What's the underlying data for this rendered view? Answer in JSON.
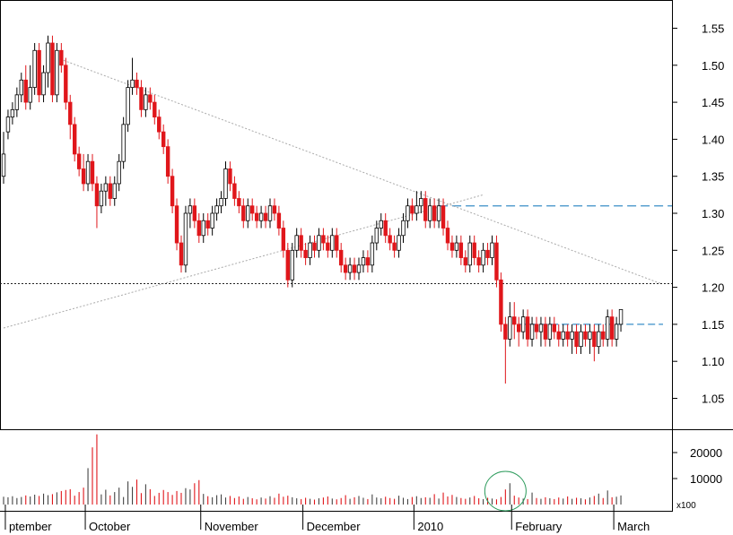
{
  "chart_data": {
    "type": "candlestick",
    "price_axis": {
      "ticks": [
        "1.55",
        "1.50",
        "1.45",
        "1.40",
        "1.35",
        "1.30",
        "1.25",
        "1.20",
        "1.15",
        "1.10",
        "1.05"
      ],
      "range": [
        1.02,
        1.59
      ]
    },
    "volume_axis": {
      "ticks": [
        "20000",
        "10000"
      ],
      "unit_label": "x100",
      "range": [
        0,
        35000
      ]
    },
    "month_labels": [
      {
        "text": "ptember",
        "day": 1
      },
      {
        "text": "October",
        "day": 19
      },
      {
        "text": "November",
        "day": 45
      },
      {
        "text": "December",
        "day": 68
      },
      {
        "text": "2010",
        "day": 93
      },
      {
        "text": "February",
        "day": 115
      },
      {
        "text": "March",
        "day": 138
      }
    ],
    "reference_levels": {
      "support": 1.205,
      "resistance": 1.31,
      "consolidation": 1.15
    },
    "trend_lines": {
      "downtrend": {
        "from": {
          "day": 12,
          "price": 1.51
        },
        "to": {
          "day": 148,
          "price": 1.205
        }
      },
      "uptrend": {
        "from": {
          "day": 0,
          "price": 1.145
        },
        "to": {
          "day": 108,
          "price": 1.325
        }
      }
    },
    "highlight": {
      "shape": "circle",
      "day": 113,
      "note": "volume spike"
    },
    "candles": [
      [
        1.35,
        1.38,
        1.34,
        1.41
      ],
      [
        1.41,
        1.43,
        1.4,
        1.44
      ],
      [
        1.43,
        1.44,
        1.42,
        1.45
      ],
      [
        1.44,
        1.46,
        1.43,
        1.47
      ],
      [
        1.46,
        1.48,
        1.45,
        1.49
      ],
      [
        1.48,
        1.45,
        1.44,
        1.5
      ],
      [
        1.45,
        1.47,
        1.44,
        1.5
      ],
      [
        1.47,
        1.52,
        1.46,
        1.53
      ],
      [
        1.52,
        1.46,
        1.45,
        1.53
      ],
      [
        1.46,
        1.49,
        1.45,
        1.5
      ],
      [
        1.49,
        1.53,
        1.47,
        1.54
      ],
      [
        1.53,
        1.46,
        1.45,
        1.54
      ],
      [
        1.46,
        1.52,
        1.45,
        1.53
      ],
      [
        1.52,
        1.5,
        1.49,
        1.53
      ],
      [
        1.5,
        1.45,
        1.44,
        1.51
      ],
      [
        1.45,
        1.42,
        1.4,
        1.46
      ],
      [
        1.42,
        1.38,
        1.37,
        1.43
      ],
      [
        1.38,
        1.36,
        1.35,
        1.39
      ],
      [
        1.36,
        1.34,
        1.33,
        1.38
      ],
      [
        1.34,
        1.37,
        1.33,
        1.38
      ],
      [
        1.37,
        1.34,
        1.33,
        1.38
      ],
      [
        1.34,
        1.31,
        1.28,
        1.35
      ],
      [
        1.31,
        1.33,
        1.3,
        1.34
      ],
      [
        1.33,
        1.34,
        1.31,
        1.35
      ],
      [
        1.34,
        1.32,
        1.31,
        1.35
      ],
      [
        1.32,
        1.34,
        1.31,
        1.35
      ],
      [
        1.34,
        1.37,
        1.33,
        1.38
      ],
      [
        1.37,
        1.42,
        1.36,
        1.43
      ],
      [
        1.42,
        1.47,
        1.41,
        1.48
      ],
      [
        1.47,
        1.48,
        1.46,
        1.51
      ],
      [
        1.48,
        1.47,
        1.46,
        1.49
      ],
      [
        1.47,
        1.44,
        1.43,
        1.48
      ],
      [
        1.44,
        1.46,
        1.43,
        1.47
      ],
      [
        1.46,
        1.45,
        1.44,
        1.47
      ],
      [
        1.45,
        1.43,
        1.42,
        1.46
      ],
      [
        1.43,
        1.41,
        1.4,
        1.44
      ],
      [
        1.41,
        1.39,
        1.38,
        1.42
      ],
      [
        1.39,
        1.35,
        1.34,
        1.4
      ],
      [
        1.35,
        1.31,
        1.3,
        1.36
      ],
      [
        1.31,
        1.26,
        1.25,
        1.32
      ],
      [
        1.26,
        1.23,
        1.22,
        1.27
      ],
      [
        1.23,
        1.3,
        1.22,
        1.31
      ],
      [
        1.3,
        1.31,
        1.28,
        1.32
      ],
      [
        1.31,
        1.29,
        1.28,
        1.32
      ],
      [
        1.29,
        1.27,
        1.26,
        1.3
      ],
      [
        1.27,
        1.29,
        1.26,
        1.3
      ],
      [
        1.29,
        1.28,
        1.27,
        1.3
      ],
      [
        1.28,
        1.3,
        1.27,
        1.31
      ],
      [
        1.3,
        1.31,
        1.29,
        1.32
      ],
      [
        1.31,
        1.32,
        1.3,
        1.33
      ],
      [
        1.32,
        1.36,
        1.31,
        1.37
      ],
      [
        1.36,
        1.34,
        1.33,
        1.37
      ],
      [
        1.34,
        1.32,
        1.31,
        1.35
      ],
      [
        1.32,
        1.31,
        1.3,
        1.33
      ],
      [
        1.31,
        1.29,
        1.28,
        1.32
      ],
      [
        1.29,
        1.31,
        1.28,
        1.32
      ],
      [
        1.31,
        1.3,
        1.29,
        1.32
      ],
      [
        1.3,
        1.29,
        1.28,
        1.31
      ],
      [
        1.29,
        1.3,
        1.28,
        1.31
      ],
      [
        1.3,
        1.29,
        1.28,
        1.31
      ],
      [
        1.29,
        1.31,
        1.28,
        1.32
      ],
      [
        1.31,
        1.3,
        1.29,
        1.32
      ],
      [
        1.3,
        1.28,
        1.27,
        1.31
      ],
      [
        1.28,
        1.25,
        1.24,
        1.29
      ],
      [
        1.25,
        1.21,
        1.2,
        1.26
      ],
      [
        1.21,
        1.25,
        1.2,
        1.26
      ],
      [
        1.25,
        1.27,
        1.24,
        1.28
      ],
      [
        1.27,
        1.25,
        1.24,
        1.28
      ],
      [
        1.25,
        1.24,
        1.23,
        1.26
      ],
      [
        1.24,
        1.26,
        1.23,
        1.27
      ],
      [
        1.26,
        1.25,
        1.24,
        1.27
      ],
      [
        1.25,
        1.27,
        1.24,
        1.28
      ],
      [
        1.27,
        1.26,
        1.25,
        1.28
      ],
      [
        1.26,
        1.25,
        1.24,
        1.27
      ],
      [
        1.25,
        1.27,
        1.24,
        1.28
      ],
      [
        1.27,
        1.25,
        1.24,
        1.28
      ],
      [
        1.25,
        1.23,
        1.22,
        1.26
      ],
      [
        1.23,
        1.22,
        1.21,
        1.24
      ],
      [
        1.22,
        1.23,
        1.21,
        1.24
      ],
      [
        1.23,
        1.22,
        1.21,
        1.24
      ],
      [
        1.22,
        1.23,
        1.21,
        1.24
      ],
      [
        1.23,
        1.24,
        1.22,
        1.25
      ],
      [
        1.24,
        1.23,
        1.22,
        1.25
      ],
      [
        1.23,
        1.26,
        1.22,
        1.27
      ],
      [
        1.26,
        1.28,
        1.25,
        1.29
      ],
      [
        1.28,
        1.29,
        1.27,
        1.3
      ],
      [
        1.29,
        1.27,
        1.26,
        1.3
      ],
      [
        1.27,
        1.26,
        1.25,
        1.28
      ],
      [
        1.26,
        1.25,
        1.24,
        1.27
      ],
      [
        1.25,
        1.27,
        1.24,
        1.28
      ],
      [
        1.27,
        1.29,
        1.26,
        1.3
      ],
      [
        1.29,
        1.31,
        1.28,
        1.32
      ],
      [
        1.31,
        1.3,
        1.29,
        1.32
      ],
      [
        1.3,
        1.31,
        1.29,
        1.33
      ],
      [
        1.31,
        1.32,
        1.3,
        1.33
      ],
      [
        1.32,
        1.29,
        1.28,
        1.33
      ],
      [
        1.29,
        1.31,
        1.28,
        1.32
      ],
      [
        1.31,
        1.29,
        1.28,
        1.32
      ],
      [
        1.29,
        1.31,
        1.28,
        1.32
      ],
      [
        1.31,
        1.28,
        1.27,
        1.32
      ],
      [
        1.28,
        1.26,
        1.25,
        1.29
      ],
      [
        1.26,
        1.25,
        1.24,
        1.27
      ],
      [
        1.25,
        1.26,
        1.24,
        1.27
      ],
      [
        1.26,
        1.24,
        1.23,
        1.27
      ],
      [
        1.24,
        1.23,
        1.22,
        1.25
      ],
      [
        1.23,
        1.26,
        1.22,
        1.27
      ],
      [
        1.26,
        1.24,
        1.23,
        1.27
      ],
      [
        1.24,
        1.23,
        1.22,
        1.25
      ],
      [
        1.23,
        1.25,
        1.22,
        1.26
      ],
      [
        1.25,
        1.24,
        1.23,
        1.26
      ],
      [
        1.24,
        1.26,
        1.23,
        1.27
      ],
      [
        1.26,
        1.21,
        1.2,
        1.27
      ],
      [
        1.21,
        1.15,
        1.14,
        1.22
      ],
      [
        1.15,
        1.13,
        1.07,
        1.16
      ],
      [
        1.13,
        1.16,
        1.12,
        1.18
      ],
      [
        1.16,
        1.15,
        1.13,
        1.18
      ],
      [
        1.15,
        1.14,
        1.12,
        1.16
      ],
      [
        1.14,
        1.16,
        1.13,
        1.17
      ],
      [
        1.16,
        1.13,
        1.12,
        1.17
      ],
      [
        1.13,
        1.15,
        1.12,
        1.16
      ],
      [
        1.15,
        1.14,
        1.13,
        1.16
      ],
      [
        1.14,
        1.15,
        1.12,
        1.16
      ],
      [
        1.15,
        1.13,
        1.12,
        1.16
      ],
      [
        1.13,
        1.15,
        1.12,
        1.16
      ],
      [
        1.15,
        1.14,
        1.13,
        1.16
      ],
      [
        1.14,
        1.13,
        1.12,
        1.15
      ],
      [
        1.13,
        1.14,
        1.12,
        1.15
      ],
      [
        1.14,
        1.13,
        1.12,
        1.15
      ],
      [
        1.13,
        1.14,
        1.11,
        1.15
      ],
      [
        1.14,
        1.12,
        1.11,
        1.15
      ],
      [
        1.12,
        1.14,
        1.11,
        1.15
      ],
      [
        1.14,
        1.13,
        1.12,
        1.15
      ],
      [
        1.13,
        1.14,
        1.11,
        1.15
      ],
      [
        1.14,
        1.12,
        1.1,
        1.15
      ],
      [
        1.12,
        1.14,
        1.11,
        1.15
      ],
      [
        1.14,
        1.13,
        1.12,
        1.15
      ],
      [
        1.13,
        1.16,
        1.12,
        1.17
      ],
      [
        1.16,
        1.13,
        1.12,
        1.17
      ],
      [
        1.13,
        1.15,
        1.12,
        1.16
      ],
      [
        1.15,
        1.17,
        1.14,
        1.17
      ]
    ],
    "volumes": [
      3000,
      2800,
      3200,
      2500,
      2900,
      3500,
      3100,
      3800,
      3300,
      4200,
      3600,
      4000,
      4700,
      5200,
      5600,
      5900,
      3400,
      4800,
      6500,
      14000,
      22000,
      27000,
      3900,
      5700,
      3500,
      4800,
      6500,
      2900,
      8900,
      6800,
      9600,
      4400,
      7800,
      5900,
      3300,
      4500,
      5600,
      4800,
      3700,
      5200,
      4500,
      6300,
      5800,
      8200,
      9400,
      4100,
      3200,
      2800,
      3600,
      3900,
      2700,
      3300,
      2500,
      3100,
      2200,
      2900,
      2400,
      2000,
      2700,
      2300,
      3200,
      2600,
      4200,
      3000,
      3400,
      2800,
      2400,
      2100,
      2600,
      2200,
      1900,
      2400,
      2700,
      3100,
      2300,
      2000,
      2500,
      3600,
      2200,
      2800,
      3300,
      2600,
      2100,
      3900,
      2700,
      2400,
      3000,
      2500,
      2200,
      3400,
      2600,
      2100,
      2900,
      3200,
      2500,
      2800,
      2600,
      4000,
      2300,
      4600,
      3100,
      3700,
      2900,
      2500,
      2200,
      2700,
      3300,
      2400,
      2100,
      2600,
      2300,
      2000,
      2900,
      5800,
      8200,
      3400,
      2700,
      2300,
      2100,
      4600,
      2500,
      2200,
      2800,
      2400,
      2100,
      2700,
      2300,
      3100,
      2200,
      2600,
      2400,
      2000,
      2700,
      3300,
      4200,
      2500,
      5400,
      2800,
      3000,
      3500
    ]
  }
}
